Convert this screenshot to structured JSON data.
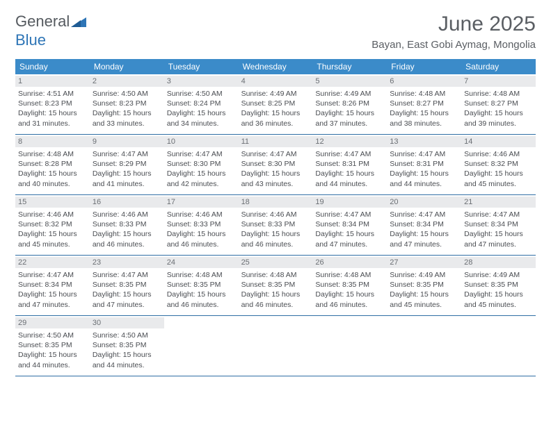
{
  "brand": {
    "text1": "General",
    "text2": "Blue",
    "icon_color": "#2e75b6",
    "text_color_gray": "#555a5f",
    "text_color_blue": "#2e75b6"
  },
  "header": {
    "month_title": "June 2025",
    "location": "Bayan, East Gobi Aymag, Mongolia"
  },
  "colors": {
    "dow_bg": "#3b8bc9",
    "dow_text": "#ffffff",
    "daynum_bg": "#e9eaec",
    "daynum_text": "#6b6f74",
    "body_text": "#4a4d52",
    "row_divider": "#2e6da4",
    "page_bg": "#ffffff"
  },
  "typography": {
    "title_fontsize": 30,
    "location_fontsize": 15,
    "dow_fontsize": 12,
    "body_fontsize": 10.5
  },
  "calendar": {
    "days_of_week": [
      "Sunday",
      "Monday",
      "Tuesday",
      "Wednesday",
      "Thursday",
      "Friday",
      "Saturday"
    ],
    "weeks": [
      [
        {
          "num": "1",
          "sunrise": "Sunrise: 4:51 AM",
          "sunset": "Sunset: 8:23 PM",
          "day1": "Daylight: 15 hours",
          "day2": "and 31 minutes."
        },
        {
          "num": "2",
          "sunrise": "Sunrise: 4:50 AM",
          "sunset": "Sunset: 8:23 PM",
          "day1": "Daylight: 15 hours",
          "day2": "and 33 minutes."
        },
        {
          "num": "3",
          "sunrise": "Sunrise: 4:50 AM",
          "sunset": "Sunset: 8:24 PM",
          "day1": "Daylight: 15 hours",
          "day2": "and 34 minutes."
        },
        {
          "num": "4",
          "sunrise": "Sunrise: 4:49 AM",
          "sunset": "Sunset: 8:25 PM",
          "day1": "Daylight: 15 hours",
          "day2": "and 36 minutes."
        },
        {
          "num": "5",
          "sunrise": "Sunrise: 4:49 AM",
          "sunset": "Sunset: 8:26 PM",
          "day1": "Daylight: 15 hours",
          "day2": "and 37 minutes."
        },
        {
          "num": "6",
          "sunrise": "Sunrise: 4:48 AM",
          "sunset": "Sunset: 8:27 PM",
          "day1": "Daylight: 15 hours",
          "day2": "and 38 minutes."
        },
        {
          "num": "7",
          "sunrise": "Sunrise: 4:48 AM",
          "sunset": "Sunset: 8:27 PM",
          "day1": "Daylight: 15 hours",
          "day2": "and 39 minutes."
        }
      ],
      [
        {
          "num": "8",
          "sunrise": "Sunrise: 4:48 AM",
          "sunset": "Sunset: 8:28 PM",
          "day1": "Daylight: 15 hours",
          "day2": "and 40 minutes."
        },
        {
          "num": "9",
          "sunrise": "Sunrise: 4:47 AM",
          "sunset": "Sunset: 8:29 PM",
          "day1": "Daylight: 15 hours",
          "day2": "and 41 minutes."
        },
        {
          "num": "10",
          "sunrise": "Sunrise: 4:47 AM",
          "sunset": "Sunset: 8:30 PM",
          "day1": "Daylight: 15 hours",
          "day2": "and 42 minutes."
        },
        {
          "num": "11",
          "sunrise": "Sunrise: 4:47 AM",
          "sunset": "Sunset: 8:30 PM",
          "day1": "Daylight: 15 hours",
          "day2": "and 43 minutes."
        },
        {
          "num": "12",
          "sunrise": "Sunrise: 4:47 AM",
          "sunset": "Sunset: 8:31 PM",
          "day1": "Daylight: 15 hours",
          "day2": "and 44 minutes."
        },
        {
          "num": "13",
          "sunrise": "Sunrise: 4:47 AM",
          "sunset": "Sunset: 8:31 PM",
          "day1": "Daylight: 15 hours",
          "day2": "and 44 minutes."
        },
        {
          "num": "14",
          "sunrise": "Sunrise: 4:46 AM",
          "sunset": "Sunset: 8:32 PM",
          "day1": "Daylight: 15 hours",
          "day2": "and 45 minutes."
        }
      ],
      [
        {
          "num": "15",
          "sunrise": "Sunrise: 4:46 AM",
          "sunset": "Sunset: 8:32 PM",
          "day1": "Daylight: 15 hours",
          "day2": "and 45 minutes."
        },
        {
          "num": "16",
          "sunrise": "Sunrise: 4:46 AM",
          "sunset": "Sunset: 8:33 PM",
          "day1": "Daylight: 15 hours",
          "day2": "and 46 minutes."
        },
        {
          "num": "17",
          "sunrise": "Sunrise: 4:46 AM",
          "sunset": "Sunset: 8:33 PM",
          "day1": "Daylight: 15 hours",
          "day2": "and 46 minutes."
        },
        {
          "num": "18",
          "sunrise": "Sunrise: 4:46 AM",
          "sunset": "Sunset: 8:33 PM",
          "day1": "Daylight: 15 hours",
          "day2": "and 46 minutes."
        },
        {
          "num": "19",
          "sunrise": "Sunrise: 4:47 AM",
          "sunset": "Sunset: 8:34 PM",
          "day1": "Daylight: 15 hours",
          "day2": "and 47 minutes."
        },
        {
          "num": "20",
          "sunrise": "Sunrise: 4:47 AM",
          "sunset": "Sunset: 8:34 PM",
          "day1": "Daylight: 15 hours",
          "day2": "and 47 minutes."
        },
        {
          "num": "21",
          "sunrise": "Sunrise: 4:47 AM",
          "sunset": "Sunset: 8:34 PM",
          "day1": "Daylight: 15 hours",
          "day2": "and 47 minutes."
        }
      ],
      [
        {
          "num": "22",
          "sunrise": "Sunrise: 4:47 AM",
          "sunset": "Sunset: 8:34 PM",
          "day1": "Daylight: 15 hours",
          "day2": "and 47 minutes."
        },
        {
          "num": "23",
          "sunrise": "Sunrise: 4:47 AM",
          "sunset": "Sunset: 8:35 PM",
          "day1": "Daylight: 15 hours",
          "day2": "and 47 minutes."
        },
        {
          "num": "24",
          "sunrise": "Sunrise: 4:48 AM",
          "sunset": "Sunset: 8:35 PM",
          "day1": "Daylight: 15 hours",
          "day2": "and 46 minutes."
        },
        {
          "num": "25",
          "sunrise": "Sunrise: 4:48 AM",
          "sunset": "Sunset: 8:35 PM",
          "day1": "Daylight: 15 hours",
          "day2": "and 46 minutes."
        },
        {
          "num": "26",
          "sunrise": "Sunrise: 4:48 AM",
          "sunset": "Sunset: 8:35 PM",
          "day1": "Daylight: 15 hours",
          "day2": "and 46 minutes."
        },
        {
          "num": "27",
          "sunrise": "Sunrise: 4:49 AM",
          "sunset": "Sunset: 8:35 PM",
          "day1": "Daylight: 15 hours",
          "day2": "and 45 minutes."
        },
        {
          "num": "28",
          "sunrise": "Sunrise: 4:49 AM",
          "sunset": "Sunset: 8:35 PM",
          "day1": "Daylight: 15 hours",
          "day2": "and 45 minutes."
        }
      ],
      [
        {
          "num": "29",
          "sunrise": "Sunrise: 4:50 AM",
          "sunset": "Sunset: 8:35 PM",
          "day1": "Daylight: 15 hours",
          "day2": "and 44 minutes."
        },
        {
          "num": "30",
          "sunrise": "Sunrise: 4:50 AM",
          "sunset": "Sunset: 8:35 PM",
          "day1": "Daylight: 15 hours",
          "day2": "and 44 minutes."
        },
        null,
        null,
        null,
        null,
        null
      ]
    ]
  }
}
